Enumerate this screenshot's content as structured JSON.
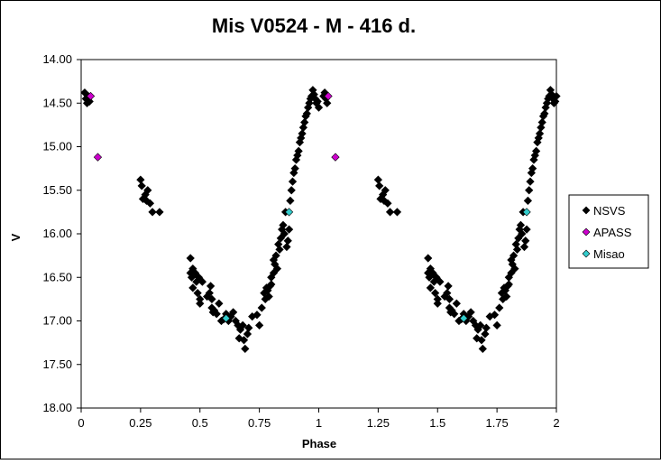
{
  "chart_data": {
    "type": "scatter",
    "title": "Mis V0524 - M - 416 d.",
    "xlabel": "Phase",
    "ylabel": "V",
    "xlim": [
      0,
      2
    ],
    "ylim": [
      14.0,
      18.0
    ],
    "y_inverted": true,
    "x_ticks": [
      "0",
      "0.25",
      "0.5",
      "0.75",
      "1",
      "1.25",
      "1.5",
      "1.75",
      "2"
    ],
    "y_ticks": [
      "14.00",
      "14.50",
      "15.00",
      "15.50",
      "16.00",
      "16.50",
      "17.00",
      "17.50",
      "18.00"
    ],
    "grid": false,
    "legend_position": "right",
    "series": [
      {
        "name": "NSVS",
        "color": "#000000",
        "marker": "diamond",
        "points": [
          [
            0.015,
            14.38
          ],
          [
            0.02,
            14.45
          ],
          [
            0.025,
            14.5
          ],
          [
            0.03,
            14.42
          ],
          [
            0.035,
            14.48
          ],
          [
            0.25,
            15.38
          ],
          [
            0.255,
            15.45
          ],
          [
            0.26,
            15.6
          ],
          [
            0.27,
            15.55
          ],
          [
            0.275,
            15.62
          ],
          [
            0.28,
            15.5
          ],
          [
            0.29,
            15.65
          ],
          [
            0.3,
            15.75
          ],
          [
            0.33,
            15.75
          ],
          [
            0.46,
            16.28
          ],
          [
            0.46,
            16.45
          ],
          [
            0.465,
            16.5
          ],
          [
            0.47,
            16.62
          ],
          [
            0.47,
            16.4
          ],
          [
            0.48,
            16.45
          ],
          [
            0.485,
            16.55
          ],
          [
            0.49,
            16.68
          ],
          [
            0.495,
            16.5
          ],
          [
            0.5,
            16.75
          ],
          [
            0.5,
            16.8
          ],
          [
            0.51,
            16.55
          ],
          [
            0.53,
            16.72
          ],
          [
            0.54,
            16.68
          ],
          [
            0.545,
            16.6
          ],
          [
            0.55,
            16.85
          ],
          [
            0.55,
            16.75
          ],
          [
            0.555,
            16.9
          ],
          [
            0.56,
            16.88
          ],
          [
            0.57,
            16.92
          ],
          [
            0.58,
            16.8
          ],
          [
            0.59,
            17.0
          ],
          [
            0.6,
            16.98
          ],
          [
            0.61,
            16.92
          ],
          [
            0.62,
            17.0
          ],
          [
            0.63,
            16.95
          ],
          [
            0.64,
            16.9
          ],
          [
            0.65,
            17.0
          ],
          [
            0.66,
            17.05
          ],
          [
            0.665,
            17.2
          ],
          [
            0.67,
            17.1
          ],
          [
            0.68,
            17.05
          ],
          [
            0.685,
            17.22
          ],
          [
            0.69,
            17.32
          ],
          [
            0.7,
            17.15
          ],
          [
            0.705,
            17.08
          ],
          [
            0.72,
            16.95
          ],
          [
            0.74,
            16.93
          ],
          [
            0.75,
            17.05
          ],
          [
            0.76,
            16.85
          ],
          [
            0.77,
            16.68
          ],
          [
            0.775,
            16.75
          ],
          [
            0.78,
            16.62
          ],
          [
            0.785,
            16.65
          ],
          [
            0.79,
            16.72
          ],
          [
            0.795,
            16.6
          ],
          [
            0.8,
            16.58
          ],
          [
            0.8,
            16.5
          ],
          [
            0.81,
            16.45
          ],
          [
            0.81,
            16.3
          ],
          [
            0.815,
            16.35
          ],
          [
            0.82,
            16.25
          ],
          [
            0.825,
            16.4
          ],
          [
            0.83,
            16.12
          ],
          [
            0.835,
            16.18
          ],
          [
            0.84,
            16.05
          ],
          [
            0.845,
            15.95
          ],
          [
            0.85,
            15.9
          ],
          [
            0.855,
            16.0
          ],
          [
            0.86,
            15.75
          ],
          [
            0.865,
            16.15
          ],
          [
            0.87,
            16.08
          ],
          [
            0.875,
            15.95
          ],
          [
            0.88,
            15.62
          ],
          [
            0.885,
            15.5
          ],
          [
            0.89,
            15.4
          ],
          [
            0.895,
            15.3
          ],
          [
            0.9,
            15.25
          ],
          [
            0.905,
            15.15
          ],
          [
            0.91,
            15.1
          ],
          [
            0.915,
            15.05
          ],
          [
            0.92,
            14.95
          ],
          [
            0.925,
            14.9
          ],
          [
            0.93,
            14.85
          ],
          [
            0.935,
            14.78
          ],
          [
            0.94,
            14.72
          ],
          [
            0.945,
            14.65
          ],
          [
            0.95,
            14.62
          ],
          [
            0.955,
            14.55
          ],
          [
            0.96,
            14.5
          ],
          [
            0.965,
            14.45
          ],
          [
            0.97,
            14.42
          ],
          [
            0.975,
            14.35
          ],
          [
            0.98,
            14.4
          ],
          [
            0.985,
            14.45
          ],
          [
            0.99,
            14.5
          ],
          [
            0.995,
            14.48
          ],
          [
            1.0,
            14.55
          ],
          [
            1.02,
            14.42
          ],
          [
            1.025,
            14.38
          ],
          [
            1.03,
            14.45
          ],
          [
            1.035,
            14.5
          ],
          [
            1.25,
            15.38
          ],
          [
            1.255,
            15.45
          ],
          [
            1.26,
            15.6
          ],
          [
            1.27,
            15.55
          ],
          [
            1.275,
            15.62
          ],
          [
            1.28,
            15.5
          ],
          [
            1.29,
            15.65
          ],
          [
            1.3,
            15.75
          ],
          [
            1.33,
            15.75
          ],
          [
            1.46,
            16.28
          ],
          [
            1.46,
            16.45
          ],
          [
            1.465,
            16.5
          ],
          [
            1.47,
            16.62
          ],
          [
            1.47,
            16.4
          ],
          [
            1.48,
            16.45
          ],
          [
            1.485,
            16.55
          ],
          [
            1.49,
            16.68
          ],
          [
            1.495,
            16.5
          ],
          [
            1.5,
            16.75
          ],
          [
            1.5,
            16.8
          ],
          [
            1.51,
            16.55
          ],
          [
            1.53,
            16.72
          ],
          [
            1.54,
            16.68
          ],
          [
            1.545,
            16.6
          ],
          [
            1.55,
            16.85
          ],
          [
            1.55,
            16.75
          ],
          [
            1.555,
            16.9
          ],
          [
            1.56,
            16.88
          ],
          [
            1.57,
            16.92
          ],
          [
            1.58,
            16.8
          ],
          [
            1.59,
            17.0
          ],
          [
            1.6,
            16.98
          ],
          [
            1.61,
            16.92
          ],
          [
            1.62,
            17.0
          ],
          [
            1.63,
            16.95
          ],
          [
            1.64,
            16.9
          ],
          [
            1.65,
            17.0
          ],
          [
            1.66,
            17.05
          ],
          [
            1.665,
            17.2
          ],
          [
            1.67,
            17.1
          ],
          [
            1.68,
            17.05
          ],
          [
            1.685,
            17.22
          ],
          [
            1.69,
            17.32
          ],
          [
            1.7,
            17.15
          ],
          [
            1.705,
            17.08
          ],
          [
            1.72,
            16.95
          ],
          [
            1.74,
            16.93
          ],
          [
            1.75,
            17.05
          ],
          [
            1.76,
            16.85
          ],
          [
            1.77,
            16.68
          ],
          [
            1.775,
            16.75
          ],
          [
            1.78,
            16.62
          ],
          [
            1.785,
            16.65
          ],
          [
            1.79,
            16.72
          ],
          [
            1.795,
            16.6
          ],
          [
            1.8,
            16.58
          ],
          [
            1.8,
            16.5
          ],
          [
            1.81,
            16.45
          ],
          [
            1.81,
            16.3
          ],
          [
            1.815,
            16.35
          ],
          [
            1.82,
            16.25
          ],
          [
            1.825,
            16.4
          ],
          [
            1.83,
            16.12
          ],
          [
            1.835,
            16.18
          ],
          [
            1.84,
            16.05
          ],
          [
            1.845,
            15.95
          ],
          [
            1.85,
            15.9
          ],
          [
            1.855,
            16.0
          ],
          [
            1.86,
            15.75
          ],
          [
            1.865,
            16.15
          ],
          [
            1.87,
            16.08
          ],
          [
            1.875,
            15.95
          ],
          [
            1.88,
            15.62
          ],
          [
            1.885,
            15.5
          ],
          [
            1.89,
            15.4
          ],
          [
            1.895,
            15.3
          ],
          [
            1.9,
            15.25
          ],
          [
            1.905,
            15.15
          ],
          [
            1.91,
            15.1
          ],
          [
            1.915,
            15.05
          ],
          [
            1.92,
            14.95
          ],
          [
            1.925,
            14.9
          ],
          [
            1.93,
            14.85
          ],
          [
            1.935,
            14.78
          ],
          [
            1.94,
            14.72
          ],
          [
            1.945,
            14.65
          ],
          [
            1.95,
            14.62
          ],
          [
            1.955,
            14.55
          ],
          [
            1.96,
            14.5
          ],
          [
            1.965,
            14.45
          ],
          [
            1.97,
            14.42
          ],
          [
            1.975,
            14.35
          ],
          [
            1.98,
            14.4
          ],
          [
            1.985,
            14.45
          ],
          [
            1.99,
            14.5
          ],
          [
            1.995,
            14.48
          ],
          [
            2.0,
            14.42
          ]
        ]
      },
      {
        "name": "APASS",
        "color": "#cc00cc",
        "marker": "diamond",
        "points": [
          [
            0.04,
            14.42
          ],
          [
            0.07,
            15.12
          ],
          [
            1.04,
            14.42
          ],
          [
            1.07,
            15.12
          ]
        ]
      },
      {
        "name": "Misao",
        "color": "#33cccc",
        "marker": "diamond",
        "points": [
          [
            0.61,
            16.97
          ],
          [
            0.875,
            15.75
          ],
          [
            1.61,
            16.97
          ],
          [
            1.875,
            15.75
          ]
        ]
      }
    ]
  }
}
